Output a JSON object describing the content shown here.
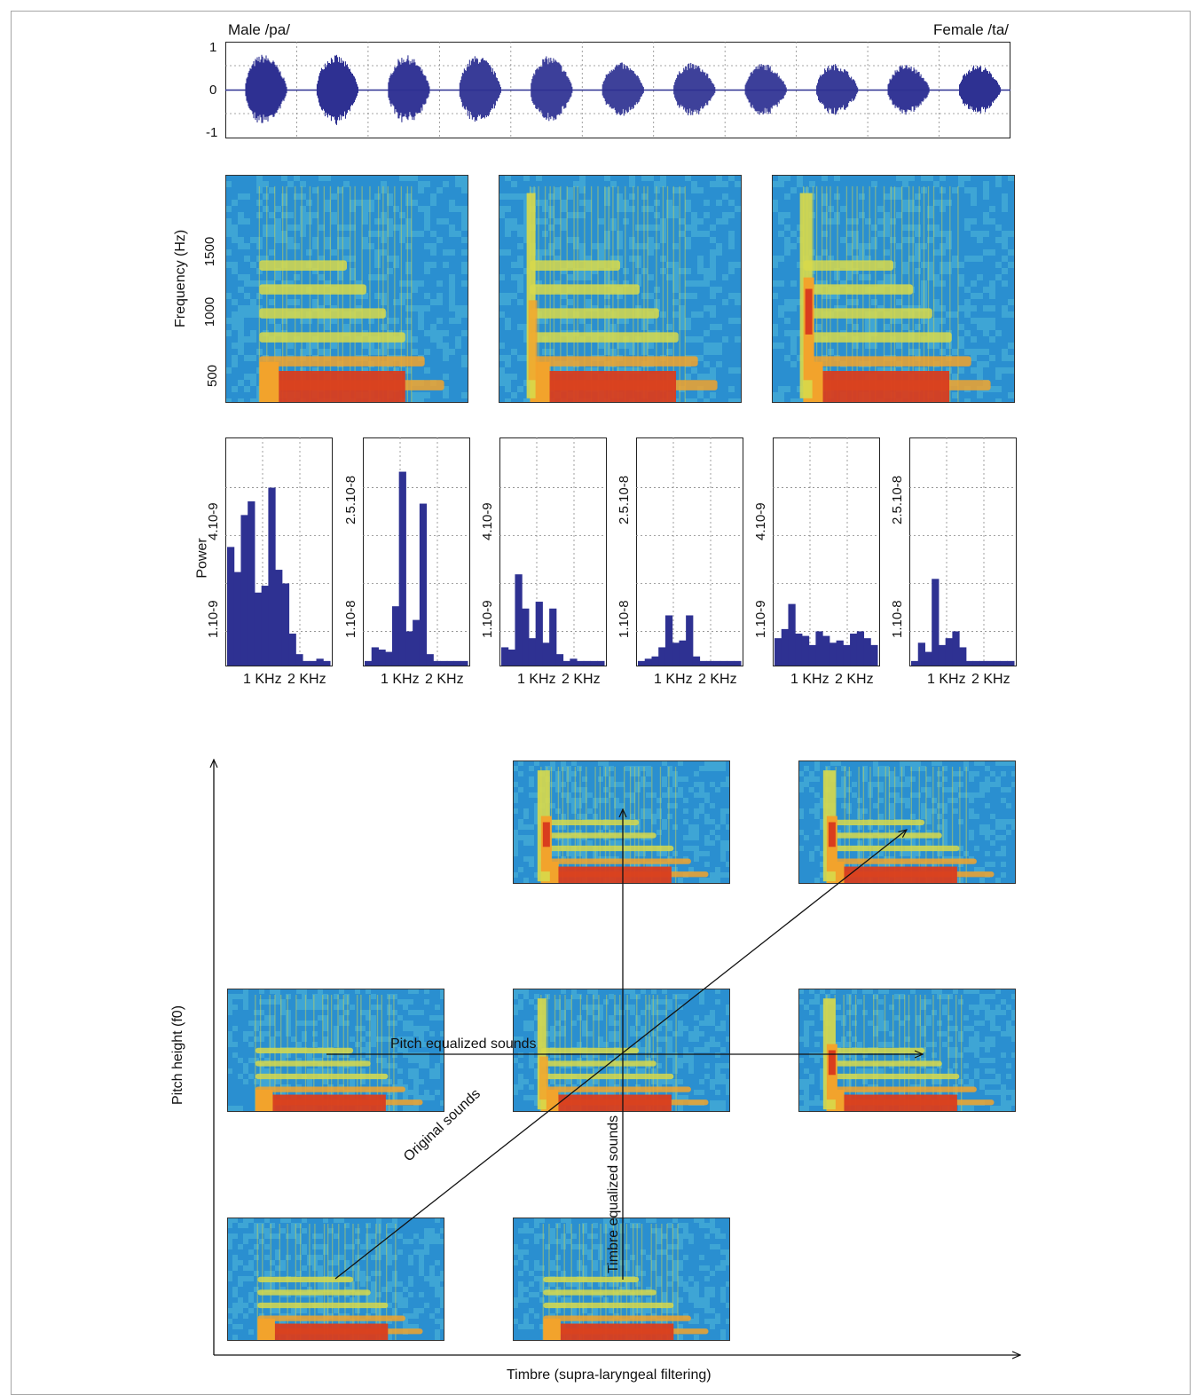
{
  "waveform": {
    "title_left": "Male /pa/",
    "title_right": "Female /ta/",
    "y_ticks": [
      "1",
      "0",
      "-1"
    ],
    "ylim": [
      -1,
      1
    ],
    "syllable_count": 11,
    "color": "#2e3192"
  },
  "spectrograms": {
    "ylabel": "Frequency (Hz)",
    "y_ticks": [
      "500",
      "1000",
      "1500"
    ],
    "panels": [
      "spectrogram-1",
      "spectrogram-2",
      "spectrogram-3"
    ],
    "colormap": [
      "#2a8fd0",
      "#4fb8d8",
      "#d8d94a",
      "#f2a32c",
      "#d93d1e"
    ]
  },
  "chart_data": {
    "type": "bar",
    "ylabel": "Power",
    "x_ticks": [
      "1 KHz",
      "2 KHz"
    ],
    "panels": [
      {
        "y_ticks": [
          "1.10-9",
          "4.10-9"
        ],
        "values": [
          0.52,
          0.41,
          0.66,
          0.72,
          0.32,
          0.35,
          0.78,
          0.42,
          0.36,
          0.14,
          0.05,
          0.02,
          0.02,
          0.03,
          0.02
        ]
      },
      {
        "y_ticks": [
          "1.10-8",
          "2.5.10-8"
        ],
        "values": [
          0.02,
          0.08,
          0.07,
          0.06,
          0.26,
          0.85,
          0.15,
          0.2,
          0.71,
          0.05,
          0.02,
          0.02,
          0.02,
          0.02,
          0.02
        ]
      },
      {
        "y_ticks": [
          "1.10-9",
          "4.10-9"
        ],
        "values": [
          0.08,
          0.07,
          0.4,
          0.25,
          0.12,
          0.28,
          0.1,
          0.25,
          0.05,
          0.02,
          0.03,
          0.02,
          0.02,
          0.02,
          0.02
        ]
      },
      {
        "y_ticks": [
          "1.10-8",
          "2.5.10-8"
        ],
        "values": [
          0.02,
          0.03,
          0.04,
          0.08,
          0.22,
          0.1,
          0.11,
          0.22,
          0.04,
          0.02,
          0.02,
          0.02,
          0.02,
          0.02,
          0.02
        ]
      },
      {
        "y_ticks": [
          "1.10-9",
          "4.10-9"
        ],
        "values": [
          0.12,
          0.16,
          0.27,
          0.14,
          0.13,
          0.09,
          0.15,
          0.13,
          0.1,
          0.11,
          0.09,
          0.14,
          0.15,
          0.12,
          0.09
        ]
      },
      {
        "y_ticks": [
          "1.10-8",
          "2.5.10-8"
        ],
        "values": [
          0.02,
          0.1,
          0.06,
          0.38,
          0.09,
          0.12,
          0.15,
          0.08,
          0.02,
          0.02,
          0.02,
          0.02,
          0.02,
          0.02,
          0.02
        ]
      }
    ],
    "color": "#2e3192"
  },
  "schematic": {
    "y_axis_label": "Pitch height (f0)",
    "x_axis_label": "Timbre (supra-laryngeal filtering)",
    "arrow_labels": {
      "pitch": "Pitch equalized sounds",
      "original": "Original sounds",
      "timbre": "Timbre equalized sounds"
    }
  }
}
